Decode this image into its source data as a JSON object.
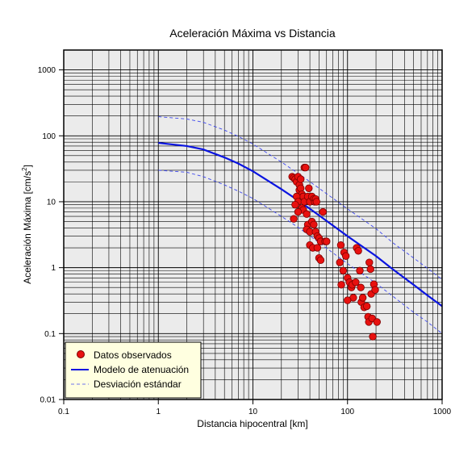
{
  "chart_data": {
    "type": "scatter",
    "title": "Aceleración Máxima vs Distancia",
    "xlabel": "Distancia hipocentral [km]",
    "ylabel_main": "Aceleración Máxima [cm/s",
    "ylabel_sup": "2",
    "ylabel_close": "]",
    "xscale": "log",
    "yscale": "log",
    "xlim": [
      0.1,
      1000
    ],
    "ylim": [
      0.01,
      2000
    ],
    "grid": true,
    "legend_position": "bottom-left",
    "x_ticks": [
      {
        "value": 0.1,
        "label": "0.1"
      },
      {
        "value": 1,
        "label": "1"
      },
      {
        "value": 10,
        "label": "10"
      },
      {
        "value": 100,
        "label": "100"
      },
      {
        "value": 1000,
        "label": "1000"
      }
    ],
    "y_ticks": [
      {
        "value": 0.01,
        "label": "0.01"
      },
      {
        "value": 0.1,
        "label": "0.1"
      },
      {
        "value": 1,
        "label": "1"
      },
      {
        "value": 10,
        "label": "10"
      },
      {
        "value": 100,
        "label": "100"
      },
      {
        "value": 1000,
        "label": "1000"
      }
    ],
    "legend": [
      {
        "label": "Datos observados",
        "kind": "marker"
      },
      {
        "label": "Modelo de atenuación",
        "kind": "solid"
      },
      {
        "label": "Desviación estándar",
        "kind": "dashed"
      }
    ],
    "colors": {
      "plot_background": "#ebebeb",
      "grid": "#000000",
      "points": "#e8110f",
      "point_edge": "#7a0000",
      "model": "#0a14e0",
      "stddev": "#3c46ee",
      "legend_background": "#ffffe0"
    },
    "series": [
      {
        "name": "Datos observados",
        "kind": "scatter",
        "points": [
          [
            26,
            24
          ],
          [
            27,
            23
          ],
          [
            28,
            22
          ],
          [
            29,
            20
          ],
          [
            30,
            24
          ],
          [
            31,
            18
          ],
          [
            31,
            15
          ],
          [
            32,
            22
          ],
          [
            32,
            16
          ],
          [
            33,
            13
          ],
          [
            34,
            12
          ],
          [
            35,
            33
          ],
          [
            36,
            33
          ],
          [
            29,
            12
          ],
          [
            30,
            10
          ],
          [
            33,
            8
          ],
          [
            35,
            10
          ],
          [
            34,
            7.5
          ],
          [
            37,
            6.5
          ],
          [
            38,
            12
          ],
          [
            39,
            16
          ],
          [
            40,
            10
          ],
          [
            42,
            12
          ],
          [
            44,
            11
          ],
          [
            45,
            10
          ],
          [
            46,
            11
          ],
          [
            47,
            10
          ],
          [
            28,
            9
          ],
          [
            27,
            5.5
          ],
          [
            30,
            7
          ],
          [
            38,
            4.5
          ],
          [
            37,
            3.8
          ],
          [
            40,
            3.5
          ],
          [
            42,
            5
          ],
          [
            44,
            4.5
          ],
          [
            46,
            3.5
          ],
          [
            48,
            3
          ],
          [
            50,
            2.8
          ],
          [
            55,
            7
          ],
          [
            52,
            2.5
          ],
          [
            58,
            2.5
          ],
          [
            60,
            2.5
          ],
          [
            40,
            2.2
          ],
          [
            43,
            2
          ],
          [
            48,
            2
          ],
          [
            50,
            1.4
          ],
          [
            52,
            1.3
          ],
          [
            85,
            2.2
          ],
          [
            83,
            1.2
          ],
          [
            90,
            0.9
          ],
          [
            92,
            1.7
          ],
          [
            96,
            1.5
          ],
          [
            100,
            0.7
          ],
          [
            105,
            0.6
          ],
          [
            110,
            0.5
          ],
          [
            112,
            0.55
          ],
          [
            115,
            0.35
          ],
          [
            122,
            0.6
          ],
          [
            125,
            2
          ],
          [
            130,
            1.8
          ],
          [
            135,
            0.9
          ],
          [
            138,
            0.5
          ],
          [
            140,
            0.3
          ],
          [
            145,
            0.35
          ],
          [
            150,
            0.25
          ],
          [
            160,
            0.26
          ],
          [
            165,
            0.18
          ],
          [
            168,
            0.15
          ],
          [
            170,
            1.2
          ],
          [
            175,
            0.95
          ],
          [
            178,
            0.4
          ],
          [
            182,
            0.17
          ],
          [
            185,
            0.09
          ],
          [
            190,
            0.56
          ],
          [
            196,
            0.46
          ],
          [
            205,
            0.15
          ],
          [
            86,
            0.55
          ],
          [
            100,
            0.32
          ]
        ]
      },
      {
        "name": "Modelo de atenuación",
        "kind": "line",
        "points": [
          [
            1,
            78
          ],
          [
            2,
            70
          ],
          [
            3,
            62
          ],
          [
            5,
            47
          ],
          [
            7,
            38
          ],
          [
            10,
            29
          ],
          [
            20,
            15.5
          ],
          [
            30,
            10.5
          ],
          [
            50,
            6.2
          ],
          [
            100,
            3
          ],
          [
            200,
            1.5
          ],
          [
            300,
            0.95
          ],
          [
            500,
            0.55
          ],
          [
            700,
            0.38
          ],
          [
            1000,
            0.26
          ]
        ]
      },
      {
        "name": "Desviación estándar superior",
        "kind": "dashed",
        "points": [
          [
            1,
            195
          ],
          [
            2,
            180
          ],
          [
            3,
            160
          ],
          [
            5,
            122
          ],
          [
            7,
            98
          ],
          [
            10,
            75
          ],
          [
            20,
            40
          ],
          [
            30,
            27
          ],
          [
            50,
            16
          ],
          [
            100,
            7.8
          ],
          [
            200,
            3.9
          ],
          [
            300,
            2.4
          ],
          [
            500,
            1.4
          ],
          [
            700,
            0.98
          ],
          [
            1000,
            0.66
          ]
        ]
      },
      {
        "name": "Desviación estándar inferior",
        "kind": "dashed",
        "points": [
          [
            1,
            30
          ],
          [
            2,
            28
          ],
          [
            3,
            24
          ],
          [
            5,
            18
          ],
          [
            7,
            14.5
          ],
          [
            10,
            11.2
          ],
          [
            20,
            6
          ],
          [
            30,
            4.1
          ],
          [
            50,
            2.4
          ],
          [
            100,
            1.15
          ],
          [
            200,
            0.58
          ],
          [
            300,
            0.37
          ],
          [
            500,
            0.21
          ],
          [
            700,
            0.15
          ],
          [
            1000,
            0.1
          ]
        ]
      }
    ]
  }
}
